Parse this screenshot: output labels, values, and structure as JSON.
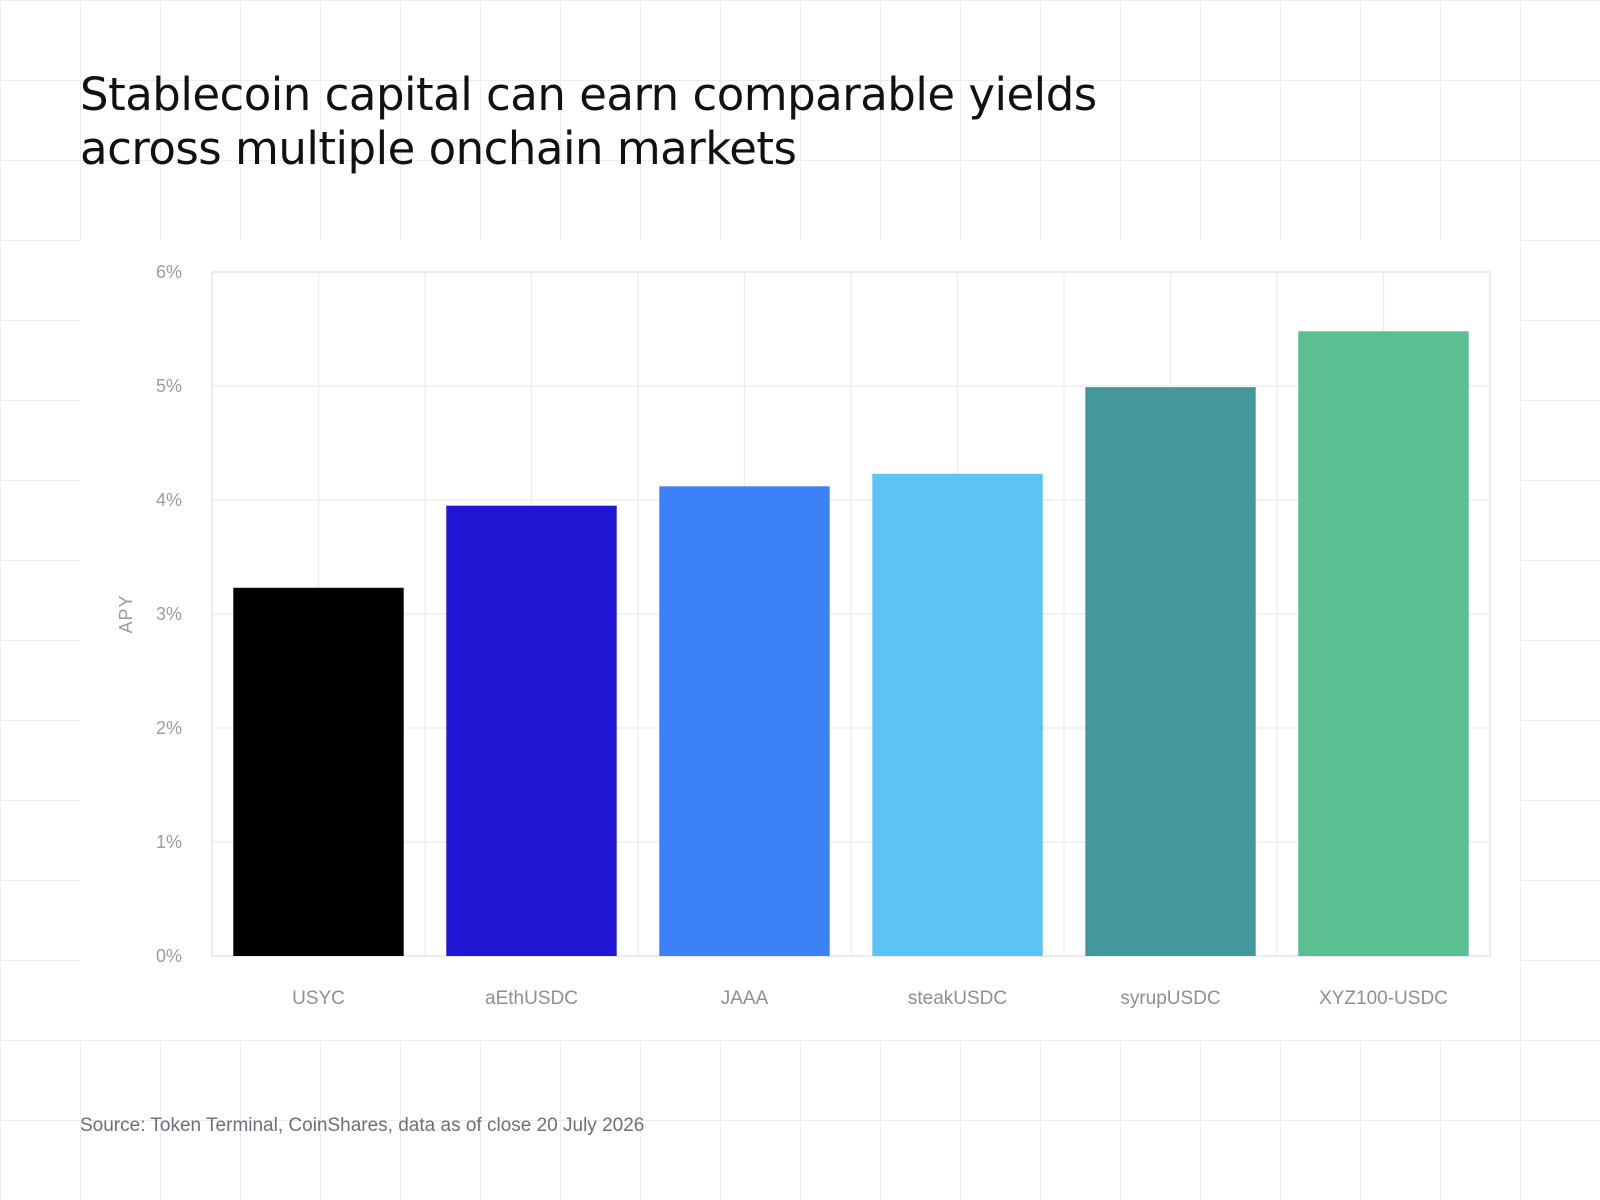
{
  "title_lines": [
    "Stablecoin capital can earn comparable yields",
    "across multiple onchain markets"
  ],
  "source": "Source: Token Terminal, CoinShares, data as of close 20 July 2026",
  "chart_data": {
    "type": "bar",
    "title": "Stablecoin capital can earn comparable yields across multiple onchain markets",
    "xlabel": "",
    "ylabel": "APY",
    "categories": [
      "USYC",
      "aEthUSDC",
      "JAAA",
      "steakUSDC",
      "syrupUSDC",
      "XYZ100-USDC"
    ],
    "values": [
      3.23,
      3.95,
      4.12,
      4.23,
      4.99,
      5.48
    ],
    "colors": [
      "#000000",
      "#1f17d4",
      "#3c82f6",
      "#5bc3f6",
      "#44979a",
      "#5bbf92"
    ],
    "ylim": [
      0,
      6
    ],
    "yticks": [
      0,
      1,
      2,
      3,
      4,
      5,
      6
    ],
    "ytick_labels": [
      "0%",
      "1%",
      "2%",
      "3%",
      "4%",
      "5%",
      "6%"
    ],
    "grid": true,
    "legend": "none"
  }
}
